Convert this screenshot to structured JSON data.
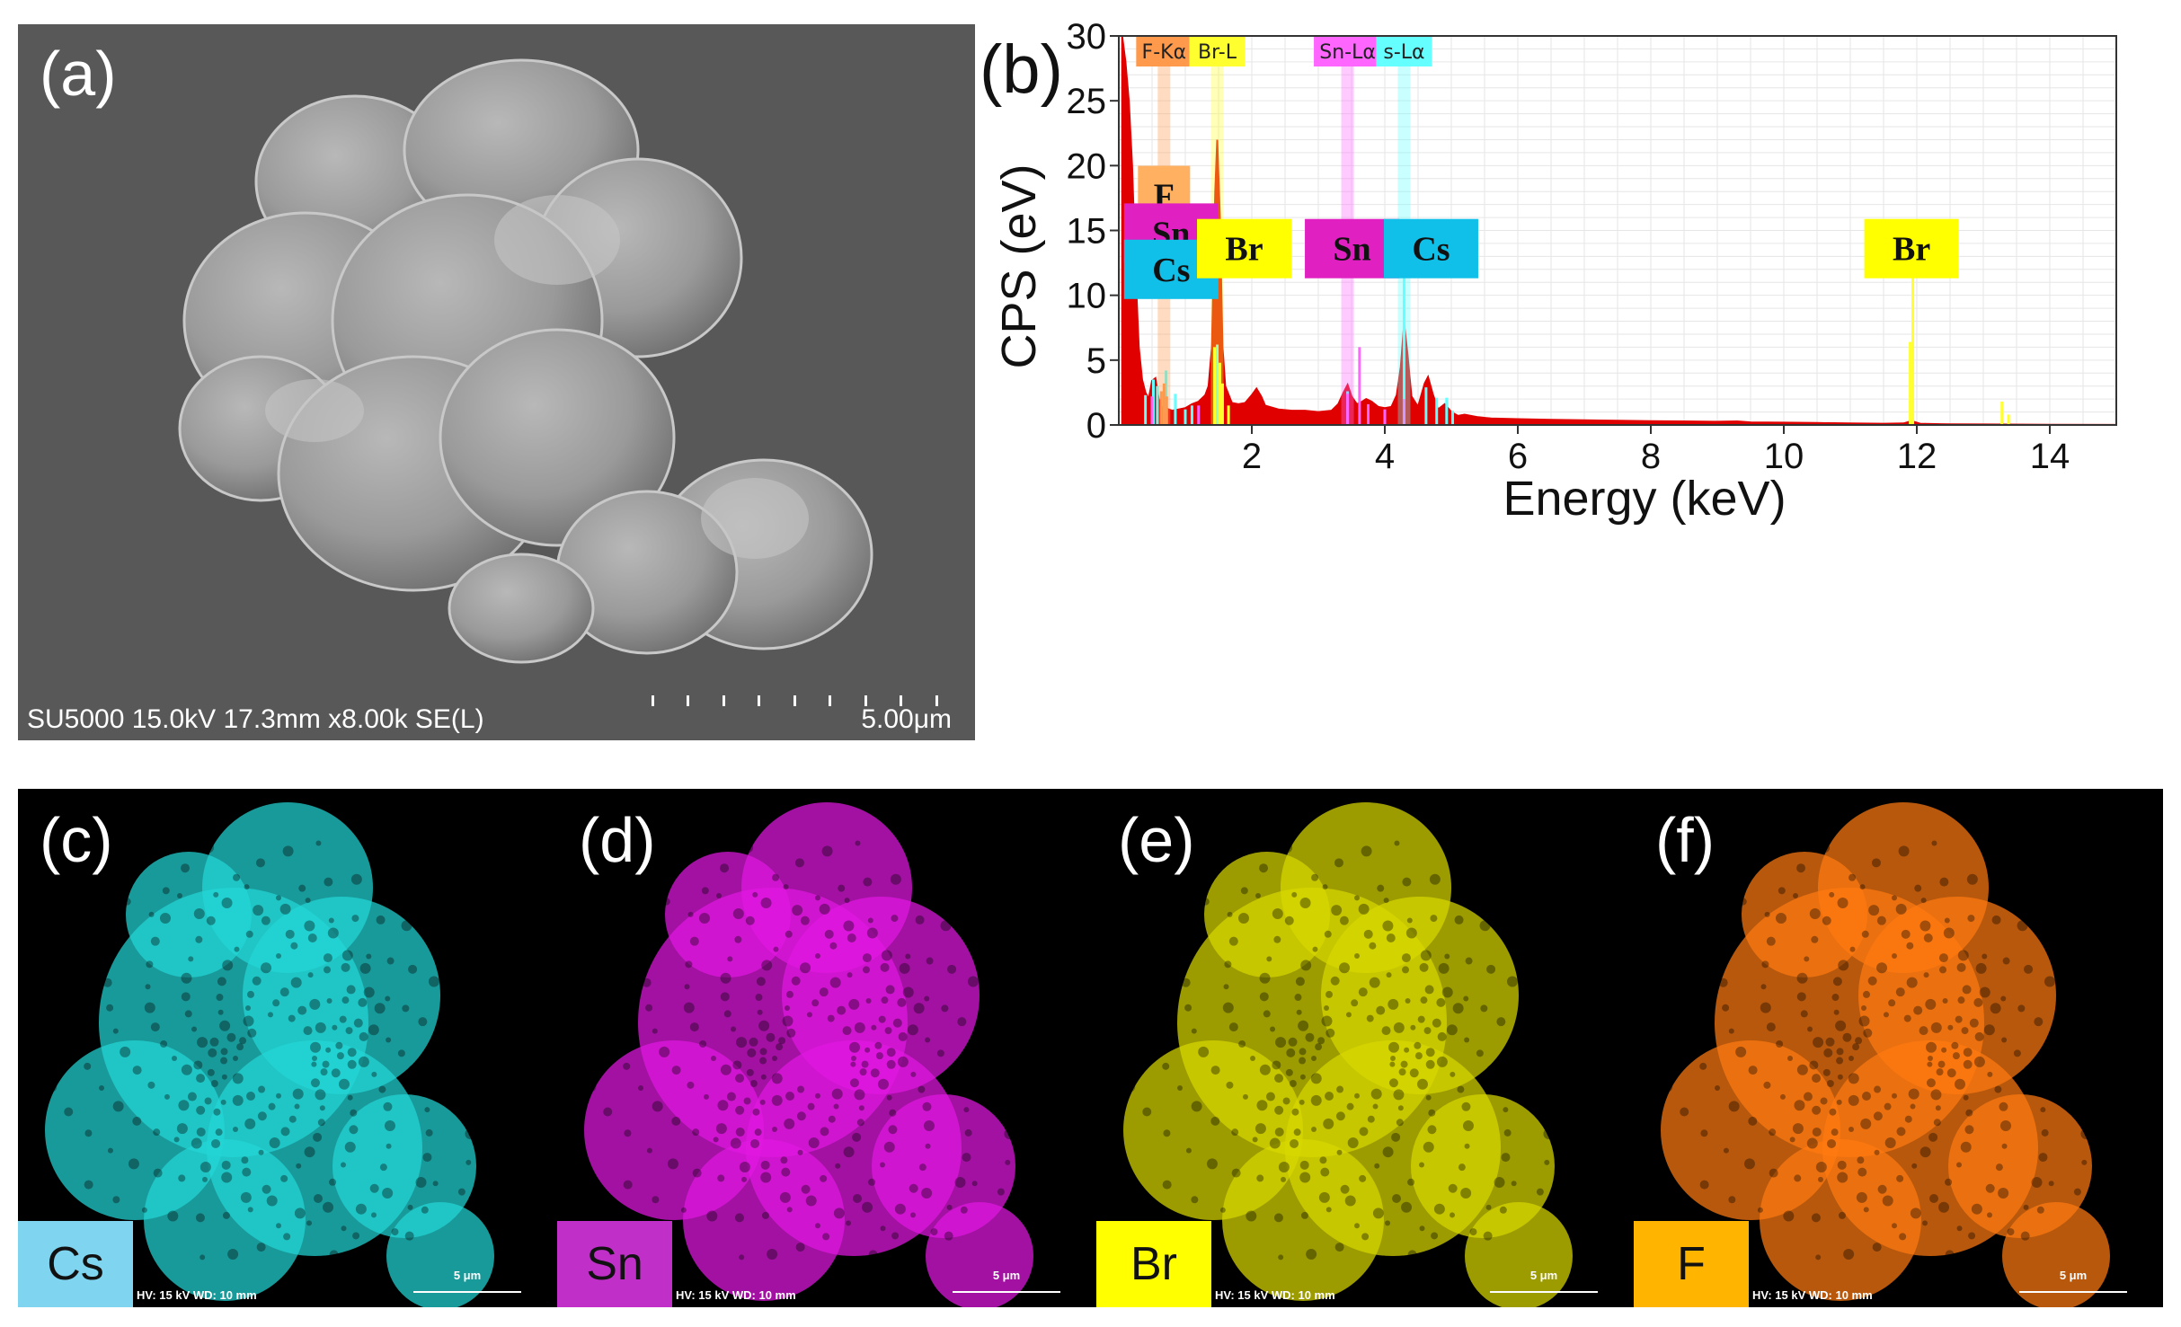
{
  "panel_a": {
    "label": "(a)",
    "info": "SU5000 15.0kV 17.3mm x8.00k SE(L)",
    "scale": "5.00μm"
  },
  "panel_b": {
    "label": "(b)"
  },
  "chart_data": {
    "type": "line",
    "title": "",
    "xlabel": "Energy (keV)",
    "ylabel": "CPS (eV)",
    "xlim": [
      0,
      15
    ],
    "ylim": [
      0,
      30
    ],
    "xticks": [
      2,
      4,
      6,
      8,
      10,
      12,
      14
    ],
    "yticks": [
      0,
      5,
      10,
      15,
      20,
      25,
      30
    ],
    "grid": true,
    "peak_labels_top": [
      {
        "text": "F-Kα",
        "x": 0.68,
        "color": "#ff9a4d"
      },
      {
        "text": "Br-L",
        "x": 1.48,
        "color": "#ffff30"
      },
      {
        "text": "Sn-Lα",
        "x": 3.44,
        "color": "#ff66ff"
      },
      {
        "text": "s-Lα",
        "x": 4.29,
        "color": "#66ffff"
      }
    ],
    "element_labels": [
      {
        "text": "F",
        "x": 0.68,
        "y": 17.7,
        "color": "#ffb060"
      },
      {
        "text": "Sn",
        "x": 0.68,
        "y": 14.8,
        "color": "#e020c0"
      },
      {
        "text": "Cs",
        "x": 0.68,
        "y": 12.0,
        "color": "#10c0e8"
      },
      {
        "text": "Br",
        "x": 1.48,
        "y": 13.6,
        "color": "#ffff00"
      },
      {
        "text": "Sn",
        "x": 3.44,
        "y": 13.6,
        "color": "#e020c0"
      },
      {
        "text": "Cs",
        "x": 4.29,
        "y": 13.6,
        "color": "#10c0e8"
      },
      {
        "text": "Br",
        "x": 11.92,
        "y": 13.6,
        "color": "#ffff00"
      }
    ],
    "series": [
      {
        "color": "#e00000",
        "x": [
          0.05,
          0.1,
          0.15,
          0.2,
          0.25,
          0.3,
          0.35,
          0.4,
          0.45,
          0.5,
          0.55,
          0.6,
          0.65,
          0.7,
          0.75,
          0.8,
          0.9,
          1.0,
          1.1,
          1.2,
          1.3,
          1.35,
          1.4,
          1.45,
          1.48,
          1.52,
          1.56,
          1.6,
          1.7,
          1.8,
          1.9,
          2.0,
          2.07,
          2.14,
          2.2,
          2.4,
          2.6,
          2.8,
          3.0,
          3.2,
          3.3,
          3.38,
          3.44,
          3.5,
          3.58,
          3.66,
          3.72,
          3.8,
          3.9,
          4.0,
          4.1,
          4.18,
          4.24,
          4.29,
          4.34,
          4.4,
          4.5,
          4.6,
          4.65,
          4.72,
          4.8,
          4.9,
          5.0,
          5.1,
          5.2,
          5.4,
          5.6,
          6.0,
          6.5,
          7.0,
          7.5,
          8.0,
          8.5,
          9.0,
          9.3,
          9.5,
          10.0,
          10.5,
          11.0,
          11.5,
          11.8,
          11.92,
          12.05,
          12.5,
          13.0,
          14.0,
          15.0
        ],
        "y": [
          30,
          28,
          25,
          20,
          12,
          6,
          3.5,
          2.5,
          2.0,
          3.4,
          3.6,
          2.0,
          1.4,
          1.3,
          1.2,
          1.1,
          1.2,
          1.3,
          1.6,
          1.8,
          2.3,
          3.0,
          6.0,
          18.0,
          22.0,
          16.0,
          6.0,
          3.0,
          1.7,
          1.6,
          1.7,
          2.3,
          2.8,
          2.2,
          1.5,
          1.2,
          1.1,
          1.1,
          1.0,
          1.1,
          1.6,
          2.5,
          3.1,
          2.2,
          1.6,
          1.8,
          2.0,
          1.8,
          1.4,
          1.3,
          1.4,
          2.3,
          4.5,
          7.8,
          5.5,
          2.2,
          1.4,
          3.2,
          3.7,
          2.4,
          1.2,
          1.6,
          1.0,
          0.7,
          0.8,
          0.6,
          0.5,
          0.45,
          0.4,
          0.36,
          0.33,
          0.3,
          0.28,
          0.25,
          0.28,
          0.2,
          0.18,
          0.15,
          0.12,
          0.1,
          0.12,
          0.3,
          0.1,
          0.05,
          0.04,
          0.02,
          0.01
        ]
      }
    ],
    "spikes": [
      {
        "color": "#66ffff",
        "points": [
          [
            0.4,
            2.3
          ],
          [
            0.52,
            3.5
          ],
          [
            0.58,
            3.0
          ],
          [
            0.71,
            4.2
          ],
          [
            0.85,
            2.4
          ],
          [
            1.0,
            1.2
          ],
          [
            1.1,
            1.5
          ],
          [
            1.48,
            6.2
          ],
          [
            3.44,
            2.6
          ],
          [
            4.29,
            12.2
          ],
          [
            4.62,
            2.9
          ],
          [
            4.78,
            2.1
          ],
          [
            4.93,
            2.1
          ],
          [
            5.02,
            1.1
          ]
        ]
      },
      {
        "color": "#ff66ff",
        "points": [
          [
            0.5,
            2.2
          ],
          [
            0.7,
            1.0
          ],
          [
            1.2,
            1.5
          ],
          [
            3.44,
            2.4
          ],
          [
            3.62,
            6.0
          ],
          [
            3.75,
            1.6
          ],
          [
            4.0,
            1.2
          ],
          [
            4.29,
            2.0
          ]
        ]
      },
      {
        "color": "#ffff30",
        "points": [
          [
            1.44,
            6.0
          ],
          [
            1.52,
            4.8
          ],
          [
            1.56,
            3.2
          ],
          [
            1.65,
            1.5
          ],
          [
            11.9,
            6.4
          ],
          [
            11.94,
            12.3
          ],
          [
            13.28,
            1.8
          ],
          [
            13.38,
            0.8
          ]
        ]
      },
      {
        "color": "#ff9a4d",
        "points": [
          [
            0.64,
            2.6
          ],
          [
            0.68,
            3.2
          ],
          [
            0.72,
            2.2
          ]
        ]
      }
    ]
  },
  "maps": [
    {
      "label": "(c)",
      "element": "Cs",
      "hv": "HV: 15 kV    WD: 10 mm",
      "scale": "5 μm",
      "color": "#22d6d6",
      "tag_color": "#7fd4ef"
    },
    {
      "label": "(d)",
      "element": "Sn",
      "hv": "HV: 15 kV    WD: 10 mm",
      "scale": "5 μm",
      "color": "#e018e0",
      "tag_color": "#c030c8"
    },
    {
      "label": "(e)",
      "element": "Br",
      "hv": "HV: 15 kV    WD: 10 mm",
      "scale": "5 μm",
      "color": "#d8d800",
      "tag_color": "#ffff00"
    },
    {
      "label": "(f)",
      "element": "F",
      "hv": "HV: 15 kV    WD: 10 mm",
      "scale": "5 μm",
      "color": "#ff7a10",
      "tag_color": "#ffb400"
    }
  ]
}
